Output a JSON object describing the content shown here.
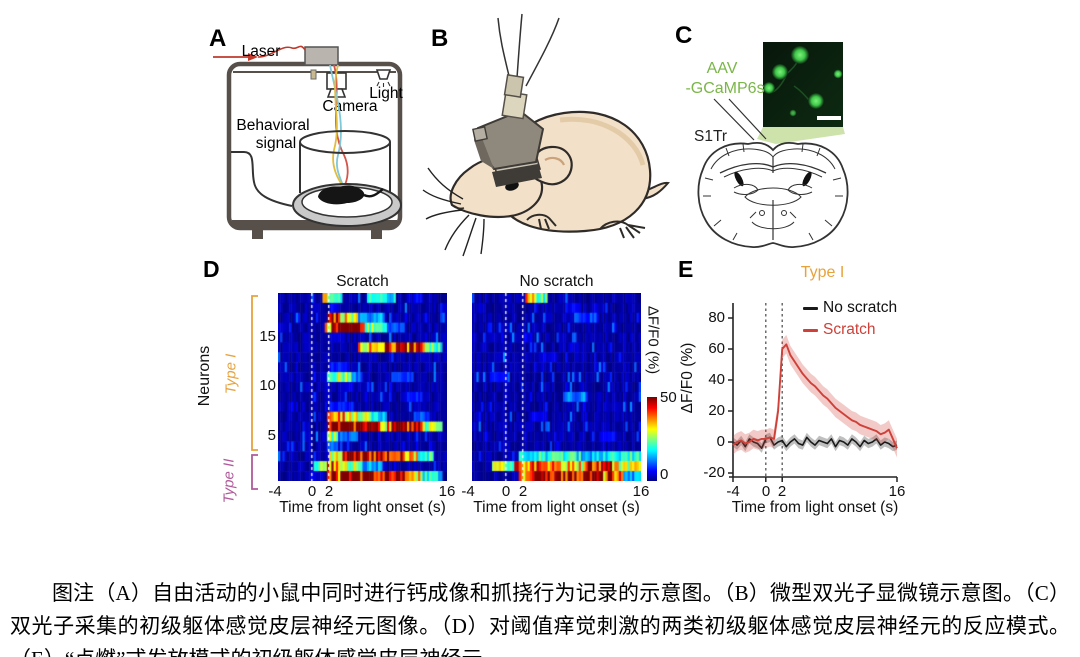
{
  "figure": {
    "panel_labels": {
      "a": "A",
      "b": "B",
      "c": "C",
      "d": "D",
      "e": "E"
    }
  },
  "panel_a": {
    "laser": "Laser",
    "camera": "Camera",
    "light": "Light",
    "behavioral_signal_line1": "Behavioral",
    "behavioral_signal_line2": "signal"
  },
  "panel_c": {
    "aav_line1": "AAV",
    "aav_line2": "-GCaMP6s",
    "aav_color": "#7ab648",
    "region_label": "S1Tr"
  },
  "colorbar": {
    "label": "ΔF/F0 (%)",
    "max": "50",
    "min": "0"
  },
  "chart_data": [
    {
      "type": "heatmap",
      "condition": "Scratch",
      "xlabel": "Time from light onset (s)",
      "ylabel": "Neurons",
      "x_range": [
        -4,
        16
      ],
      "x_ticks": [
        -4,
        0,
        2,
        16
      ],
      "y_ticks": [
        5,
        10,
        15
      ],
      "n_neurons": 19,
      "value_range": [
        0,
        50
      ],
      "event_lines": [
        0,
        2
      ],
      "colormap": "jet",
      "seed": 11,
      "groups": [
        {
          "label": "Type I",
          "rows": "4-19",
          "color": "#e8a23c"
        },
        {
          "label": "Type II",
          "rows": "1-3",
          "color": "#b05a9b"
        }
      ],
      "rows_top_to_bottom": [
        {
          "neuron": 19,
          "segments": [
            [
              1.3,
              2.4,
              30
            ],
            [
              2.4,
              3.6,
              22
            ],
            [
              6.5,
              10,
              18
            ],
            [
              12,
              13,
              8
            ]
          ]
        },
        {
          "neuron": 18,
          "segments": [
            [
              2,
              3,
              6
            ]
          ]
        },
        {
          "neuron": 17,
          "segments": [
            [
              1.9,
              3.1,
              46
            ],
            [
              3.1,
              5.5,
              32
            ],
            [
              5.5,
              8.5,
              14
            ]
          ]
        },
        {
          "neuron": 16,
          "segments": [
            [
              1.5,
              2.3,
              36
            ],
            [
              2.3,
              6.3,
              52
            ],
            [
              6.3,
              9,
              24
            ],
            [
              9,
              11,
              10
            ]
          ]
        },
        {
          "neuron": 15,
          "segments": [
            [
              2,
              4,
              5
            ]
          ]
        },
        {
          "neuron": 14,
          "segments": [
            [
              5.5,
              8,
              34
            ],
            [
              8,
              13.5,
              44
            ],
            [
              13.5,
              15.5,
              22
            ]
          ]
        },
        {
          "neuron": 13,
          "segments": []
        },
        {
          "neuron": 12,
          "segments": [
            [
              2,
              4.5,
              7
            ]
          ]
        },
        {
          "neuron": 11,
          "segments": [
            [
              1.8,
              4.6,
              27
            ],
            [
              4.6,
              6,
              12
            ],
            [
              9.5,
              12,
              9
            ]
          ]
        },
        {
          "neuron": 10,
          "segments": [
            [
              3,
              5,
              5
            ]
          ]
        },
        {
          "neuron": 9,
          "segments": [
            [
              11,
              13,
              7
            ]
          ]
        },
        {
          "neuron": 8,
          "segments": [
            [
              2,
              5,
              8
            ]
          ]
        },
        {
          "neuron": 7,
          "segments": [
            [
              1.9,
              4,
              38
            ],
            [
              4,
              7,
              30
            ],
            [
              7,
              9,
              16
            ],
            [
              12,
              14,
              10
            ]
          ]
        },
        {
          "neuron": 6,
          "segments": [
            [
              1.9,
              8,
              52
            ],
            [
              8,
              9.5,
              34
            ],
            [
              9.5,
              12,
              50
            ],
            [
              12,
              13.5,
              40
            ],
            [
              13.5,
              15.5,
              28
            ]
          ]
        },
        {
          "neuron": 5,
          "segments": [
            [
              1.7,
              3,
              25
            ],
            [
              3,
              5.5,
              11
            ]
          ]
        },
        {
          "neuron": 4,
          "segments": [
            [
              1.8,
              3.2,
              13
            ]
          ]
        },
        {
          "neuron": 3,
          "segments": [
            [
              2,
              3.6,
              30
            ],
            [
              3.6,
              10.8,
              52
            ],
            [
              10.8,
              12.5,
              34
            ],
            [
              12.5,
              14.5,
              20
            ]
          ]
        },
        {
          "neuron": 2,
          "segments": [
            [
              0.3,
              1.8,
              24
            ],
            [
              1.8,
              3.4,
              40
            ],
            [
              3.4,
              6,
              27
            ],
            [
              6,
              8.5,
              14
            ]
          ]
        },
        {
          "neuron": 1,
          "segments": [
            [
              1.8,
              3.4,
              44
            ],
            [
              3.4,
              11.2,
              53
            ],
            [
              11.2,
              13,
              32
            ],
            [
              13,
              15.5,
              18
            ]
          ]
        }
      ]
    },
    {
      "type": "heatmap",
      "condition": "No scratch",
      "xlabel": "Time from light onset (s)",
      "x_range": [
        -4,
        16
      ],
      "x_ticks": [
        -4,
        0,
        2,
        16
      ],
      "n_neurons": 19,
      "value_range": [
        0,
        50
      ],
      "event_lines": [
        0,
        2
      ],
      "colormap": "jet",
      "seed": 23,
      "rows_top_to_bottom": [
        {
          "neuron": 19,
          "segments": [
            [
              2.3,
              3.4,
              34
            ],
            [
              3.4,
              5,
              24
            ]
          ]
        },
        {
          "neuron": 18,
          "segments": [
            [
              7,
              9,
              6
            ]
          ]
        },
        {
          "neuron": 17,
          "segments": [
            [
              8,
              11,
              9
            ]
          ]
        },
        {
          "neuron": 16,
          "segments": []
        },
        {
          "neuron": 15,
          "segments": [
            [
              2,
              3,
              5
            ]
          ]
        },
        {
          "neuron": 14,
          "segments": []
        },
        {
          "neuron": 13,
          "segments": [
            [
              4,
              6,
              5
            ]
          ]
        },
        {
          "neuron": 12,
          "segments": []
        },
        {
          "neuron": 11,
          "segments": [
            [
              -2,
              0,
              6
            ]
          ]
        },
        {
          "neuron": 10,
          "segments": []
        },
        {
          "neuron": 9,
          "segments": [
            [
              7,
              9.5,
              13
            ]
          ]
        },
        {
          "neuron": 8,
          "segments": []
        },
        {
          "neuron": 7,
          "segments": [
            [
              3,
              5,
              5
            ]
          ]
        },
        {
          "neuron": 6,
          "segments": []
        },
        {
          "neuron": 5,
          "segments": [
            [
              11,
              13,
              6
            ]
          ]
        },
        {
          "neuron": 4,
          "segments": []
        },
        {
          "neuron": 3,
          "segments": [
            [
              1.5,
              4,
              18
            ],
            [
              4,
              9,
              20
            ],
            [
              9,
              12,
              16
            ],
            [
              12,
              16,
              20
            ]
          ]
        },
        {
          "neuron": 2,
          "segments": [
            [
              -1.5,
              1,
              26
            ],
            [
              1,
              5,
              38
            ],
            [
              5,
              9.5,
              34
            ],
            [
              9.5,
              12.5,
              46
            ],
            [
              12.5,
              16,
              30
            ]
          ]
        },
        {
          "neuron": 1,
          "segments": [
            [
              1.5,
              3,
              36
            ],
            [
              3,
              11.5,
              51
            ],
            [
              11.5,
              14,
              40
            ],
            [
              14,
              16,
              14
            ]
          ]
        }
      ]
    },
    {
      "type": "line",
      "title": "Type I",
      "title_color": "#e8a23c",
      "xlabel": "Time from light onset (s)",
      "ylabel": "ΔF/F0 (%)",
      "xlim": [
        -4,
        16
      ],
      "ylim": [
        -25,
        90
      ],
      "x_ticks": [
        -4,
        0,
        2,
        16
      ],
      "y_ticks": [
        -20,
        0,
        20,
        40,
        60,
        80
      ],
      "event_lines": [
        0,
        2
      ],
      "x_start": -4,
      "x_step": 0.5,
      "series": [
        {
          "name": "No scratch",
          "color": "#1a1a1a",
          "band": 3,
          "values": [
            0,
            -2,
            1,
            -3,
            2,
            0,
            -1,
            -4,
            2,
            3,
            -2,
            0,
            1,
            -3,
            0,
            2,
            -1,
            -2,
            3,
            0,
            -2,
            1,
            0,
            -1,
            2,
            -3,
            1,
            0,
            -2,
            2,
            0,
            -3,
            1,
            -1,
            0,
            2,
            -2,
            0,
            -1,
            -3,
            -2
          ]
        },
        {
          "name": "Scratch",
          "color": "#cf4038",
          "band": 6,
          "values": [
            -2,
            0,
            1,
            -1,
            0,
            2,
            1,
            2,
            2,
            3,
            2,
            20,
            60,
            63,
            56,
            52,
            48,
            44,
            41,
            38,
            36,
            33,
            30,
            28,
            25,
            22,
            20,
            18,
            16,
            14,
            13,
            11,
            10,
            9,
            8,
            7,
            5,
            6,
            8,
            2,
            -4
          ]
        }
      ]
    }
  ],
  "caption": "图注（A）自由活动的小鼠中同时进行钙成像和抓挠行为记录的示意图。（B）微型双光子显微镜示意图。（C）双光子采集的初级躯体感觉皮层神经元图像。（D）对阈值痒觉刺激的两类初级躯体感觉皮层神经元的反应模式。（E）“点燃”式发放模式的初级躯体感觉皮层神经元。"
}
